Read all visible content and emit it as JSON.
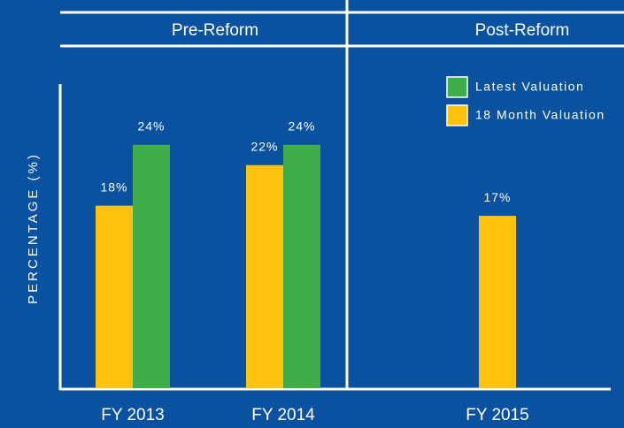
{
  "chart_data": {
    "type": "bar",
    "sections": [
      "Pre-Reform",
      "Post-Reform"
    ],
    "ylabel": "PERCENTAGE (%)",
    "categories": [
      "FY 2013",
      "FY 2014",
      "FY 2015"
    ],
    "series": [
      {
        "name": "Latest Valuation",
        "color": "#3fae49",
        "values": [
          24,
          24,
          null
        ],
        "value_labels": [
          "24%",
          "24%",
          null
        ]
      },
      {
        "name": "18 Month Valuation",
        "color": "#ffc20e",
        "values": [
          18,
          22,
          17
        ],
        "value_labels": [
          "18%",
          "22%",
          "17%"
        ]
      }
    ],
    "ylim": [
      0,
      30
    ],
    "legend": "upper right"
  }
}
